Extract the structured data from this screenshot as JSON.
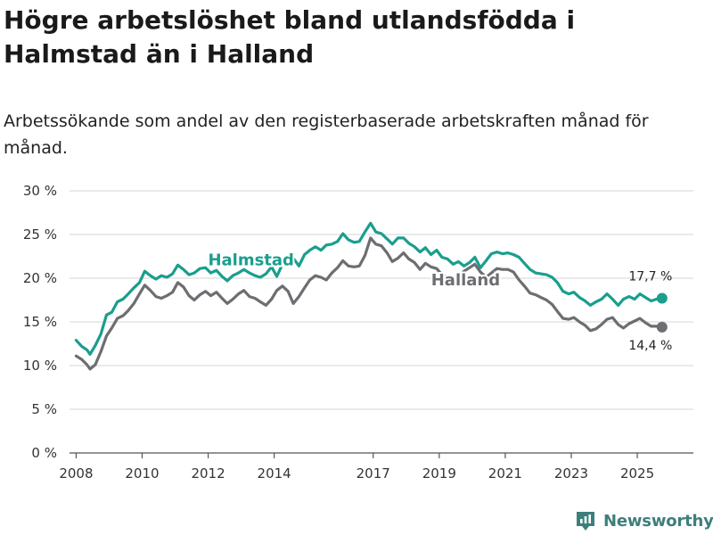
{
  "title": "Högre arbetslöshet bland utlandsfödda i Halmstad än i Halland",
  "subtitle": "Arbetssökande som andel av den registerbaserade arbetskraften månad för månad.",
  "brand": {
    "name": "Newsworthy",
    "icon": "newsworthy-logo-icon",
    "color": "#3d7f7b"
  },
  "chart_data": {
    "type": "line",
    "title": "Högre arbetslöshet bland utlandsfödda i Halmstad än i Halland",
    "xlabel": "",
    "ylabel": "",
    "ylim": [
      0,
      30
    ],
    "xlim": [
      2007.8,
      2026.7
    ],
    "grid": true,
    "y_ticks": [
      {
        "value": 0,
        "label": "0 %"
      },
      {
        "value": 5,
        "label": "5 %"
      },
      {
        "value": 10,
        "label": "10 %"
      },
      {
        "value": 15,
        "label": "15 %"
      },
      {
        "value": 20,
        "label": "20 %"
      },
      {
        "value": 25,
        "label": "25 %"
      },
      {
        "value": 30,
        "label": "30 %"
      }
    ],
    "x_ticks": [
      {
        "value": 2008,
        "label": "2008"
      },
      {
        "value": 2010,
        "label": "2010"
      },
      {
        "value": 2012,
        "label": "2012"
      },
      {
        "value": 2014,
        "label": "2014"
      },
      {
        "value": 2017,
        "label": "2017"
      },
      {
        "value": 2019,
        "label": "2019"
      },
      {
        "value": 2021,
        "label": "2021"
      },
      {
        "value": 2023,
        "label": "2023"
      },
      {
        "value": 2025,
        "label": "2025"
      }
    ],
    "series": [
      {
        "name": "Halmstad",
        "color": "#1a9e8e",
        "label_at": [
          2013.3,
          21.5
        ],
        "end_label": "17,7 %",
        "end_label_position": "above",
        "points": [
          [
            2008.0,
            12.9
          ],
          [
            2008.17,
            12.2
          ],
          [
            2008.33,
            11.8
          ],
          [
            2008.42,
            11.3
          ],
          [
            2008.58,
            12.3
          ],
          [
            2008.75,
            13.6
          ],
          [
            2008.92,
            15.8
          ],
          [
            2009.08,
            16.1
          ],
          [
            2009.25,
            17.3
          ],
          [
            2009.42,
            17.6
          ],
          [
            2009.58,
            18.2
          ],
          [
            2009.75,
            18.9
          ],
          [
            2009.92,
            19.5
          ],
          [
            2010.08,
            20.8
          ],
          [
            2010.25,
            20.3
          ],
          [
            2010.42,
            19.9
          ],
          [
            2010.58,
            20.3
          ],
          [
            2010.75,
            20.1
          ],
          [
            2010.92,
            20.5
          ],
          [
            2011.08,
            21.5
          ],
          [
            2011.25,
            21.0
          ],
          [
            2011.42,
            20.4
          ],
          [
            2011.58,
            20.6
          ],
          [
            2011.75,
            21.1
          ],
          [
            2011.92,
            21.2
          ],
          [
            2012.08,
            20.6
          ],
          [
            2012.25,
            20.9
          ],
          [
            2012.42,
            20.2
          ],
          [
            2012.58,
            19.7
          ],
          [
            2012.75,
            20.3
          ],
          [
            2012.92,
            20.6
          ],
          [
            2013.08,
            21.0
          ],
          [
            2013.25,
            20.6
          ],
          [
            2013.42,
            20.3
          ],
          [
            2013.58,
            20.1
          ],
          [
            2013.75,
            20.5
          ],
          [
            2013.92,
            21.3
          ],
          [
            2014.08,
            20.2
          ],
          [
            2014.25,
            21.6
          ],
          [
            2014.42,
            21.8
          ],
          [
            2014.58,
            22.3
          ],
          [
            2014.75,
            21.4
          ],
          [
            2014.92,
            22.7
          ],
          [
            2015.08,
            23.2
          ],
          [
            2015.25,
            23.6
          ],
          [
            2015.42,
            23.2
          ],
          [
            2015.58,
            23.8
          ],
          [
            2015.75,
            23.9
          ],
          [
            2015.92,
            24.2
          ],
          [
            2016.08,
            25.1
          ],
          [
            2016.25,
            24.4
          ],
          [
            2016.42,
            24.1
          ],
          [
            2016.58,
            24.2
          ],
          [
            2016.75,
            25.3
          ],
          [
            2016.92,
            26.3
          ],
          [
            2017.08,
            25.3
          ],
          [
            2017.25,
            25.1
          ],
          [
            2017.42,
            24.5
          ],
          [
            2017.58,
            23.9
          ],
          [
            2017.75,
            24.6
          ],
          [
            2017.92,
            24.6
          ],
          [
            2018.08,
            24.0
          ],
          [
            2018.25,
            23.6
          ],
          [
            2018.42,
            23.0
          ],
          [
            2018.58,
            23.5
          ],
          [
            2018.75,
            22.7
          ],
          [
            2018.92,
            23.2
          ],
          [
            2019.08,
            22.4
          ],
          [
            2019.25,
            22.2
          ],
          [
            2019.42,
            21.6
          ],
          [
            2019.58,
            21.9
          ],
          [
            2019.75,
            21.4
          ],
          [
            2019.92,
            21.8
          ],
          [
            2020.08,
            22.4
          ],
          [
            2020.25,
            21.2
          ],
          [
            2020.42,
            22.0
          ],
          [
            2020.58,
            22.8
          ],
          [
            2020.75,
            23.0
          ],
          [
            2020.92,
            22.8
          ],
          [
            2021.08,
            22.9
          ],
          [
            2021.25,
            22.7
          ],
          [
            2021.42,
            22.4
          ],
          [
            2021.58,
            21.7
          ],
          [
            2021.75,
            21.0
          ],
          [
            2021.92,
            20.6
          ],
          [
            2022.08,
            20.5
          ],
          [
            2022.25,
            20.4
          ],
          [
            2022.42,
            20.1
          ],
          [
            2022.58,
            19.5
          ],
          [
            2022.75,
            18.5
          ],
          [
            2022.92,
            18.2
          ],
          [
            2023.08,
            18.4
          ],
          [
            2023.25,
            17.8
          ],
          [
            2023.42,
            17.4
          ],
          [
            2023.58,
            16.9
          ],
          [
            2023.75,
            17.3
          ],
          [
            2023.92,
            17.6
          ],
          [
            2024.08,
            18.2
          ],
          [
            2024.25,
            17.6
          ],
          [
            2024.42,
            16.9
          ],
          [
            2024.58,
            17.6
          ],
          [
            2024.75,
            17.9
          ],
          [
            2024.92,
            17.6
          ],
          [
            2025.08,
            18.2
          ],
          [
            2025.25,
            17.8
          ],
          [
            2025.42,
            17.4
          ],
          [
            2025.58,
            17.6
          ],
          [
            2025.75,
            17.7
          ]
        ]
      },
      {
        "name": "Halland",
        "color": "#6d6d72",
        "label_at": [
          2019.8,
          19.2
        ],
        "end_label": "14,4 %",
        "end_label_position": "below",
        "points": [
          [
            2008.0,
            11.1
          ],
          [
            2008.17,
            10.7
          ],
          [
            2008.33,
            10.1
          ],
          [
            2008.42,
            9.6
          ],
          [
            2008.58,
            10.1
          ],
          [
            2008.75,
            11.6
          ],
          [
            2008.92,
            13.4
          ],
          [
            2009.08,
            14.3
          ],
          [
            2009.25,
            15.4
          ],
          [
            2009.42,
            15.7
          ],
          [
            2009.58,
            16.3
          ],
          [
            2009.75,
            17.1
          ],
          [
            2009.92,
            18.2
          ],
          [
            2010.08,
            19.2
          ],
          [
            2010.25,
            18.6
          ],
          [
            2010.42,
            17.9
          ],
          [
            2010.58,
            17.7
          ],
          [
            2010.75,
            18.0
          ],
          [
            2010.92,
            18.4
          ],
          [
            2011.08,
            19.5
          ],
          [
            2011.25,
            19.0
          ],
          [
            2011.42,
            18.0
          ],
          [
            2011.58,
            17.5
          ],
          [
            2011.75,
            18.1
          ],
          [
            2011.92,
            18.5
          ],
          [
            2012.08,
            18.0
          ],
          [
            2012.25,
            18.4
          ],
          [
            2012.42,
            17.7
          ],
          [
            2012.58,
            17.1
          ],
          [
            2012.75,
            17.6
          ],
          [
            2012.92,
            18.2
          ],
          [
            2013.08,
            18.6
          ],
          [
            2013.25,
            17.9
          ],
          [
            2013.42,
            17.7
          ],
          [
            2013.58,
            17.3
          ],
          [
            2013.75,
            16.9
          ],
          [
            2013.92,
            17.6
          ],
          [
            2014.08,
            18.6
          ],
          [
            2014.25,
            19.1
          ],
          [
            2014.42,
            18.5
          ],
          [
            2014.58,
            17.1
          ],
          [
            2014.75,
            17.9
          ],
          [
            2014.92,
            18.9
          ],
          [
            2015.08,
            19.8
          ],
          [
            2015.25,
            20.3
          ],
          [
            2015.42,
            20.1
          ],
          [
            2015.58,
            19.8
          ],
          [
            2015.75,
            20.6
          ],
          [
            2015.92,
            21.2
          ],
          [
            2016.08,
            22.0
          ],
          [
            2016.25,
            21.4
          ],
          [
            2016.42,
            21.3
          ],
          [
            2016.58,
            21.4
          ],
          [
            2016.75,
            22.6
          ],
          [
            2016.92,
            24.6
          ],
          [
            2017.08,
            23.9
          ],
          [
            2017.25,
            23.7
          ],
          [
            2017.42,
            22.9
          ],
          [
            2017.58,
            21.9
          ],
          [
            2017.75,
            22.3
          ],
          [
            2017.92,
            22.9
          ],
          [
            2018.08,
            22.2
          ],
          [
            2018.25,
            21.8
          ],
          [
            2018.42,
            21.0
          ],
          [
            2018.58,
            21.7
          ],
          [
            2018.75,
            21.3
          ],
          [
            2018.92,
            21.1
          ],
          [
            2019.08,
            20.4
          ],
          [
            2019.25,
            20.1
          ],
          [
            2019.42,
            20.0
          ],
          [
            2019.58,
            20.2
          ],
          [
            2019.75,
            20.8
          ],
          [
            2019.92,
            21.2
          ],
          [
            2020.08,
            21.6
          ],
          [
            2020.25,
            20.7
          ],
          [
            2020.42,
            20.1
          ],
          [
            2020.58,
            20.6
          ],
          [
            2020.75,
            21.1
          ],
          [
            2020.92,
            21.0
          ],
          [
            2021.08,
            21.0
          ],
          [
            2021.25,
            20.7
          ],
          [
            2021.42,
            19.8
          ],
          [
            2021.58,
            19.1
          ],
          [
            2021.75,
            18.3
          ],
          [
            2021.92,
            18.1
          ],
          [
            2022.08,
            17.8
          ],
          [
            2022.25,
            17.5
          ],
          [
            2022.42,
            17.0
          ],
          [
            2022.58,
            16.2
          ],
          [
            2022.75,
            15.4
          ],
          [
            2022.92,
            15.3
          ],
          [
            2023.08,
            15.5
          ],
          [
            2023.25,
            15.0
          ],
          [
            2023.42,
            14.6
          ],
          [
            2023.58,
            14.0
          ],
          [
            2023.75,
            14.2
          ],
          [
            2023.92,
            14.7
          ],
          [
            2024.08,
            15.3
          ],
          [
            2024.25,
            15.5
          ],
          [
            2024.42,
            14.7
          ],
          [
            2024.58,
            14.3
          ],
          [
            2024.75,
            14.8
          ],
          [
            2024.92,
            15.1
          ],
          [
            2025.08,
            15.4
          ],
          [
            2025.25,
            14.9
          ],
          [
            2025.42,
            14.5
          ],
          [
            2025.58,
            14.5
          ],
          [
            2025.75,
            14.4
          ]
        ]
      }
    ]
  }
}
